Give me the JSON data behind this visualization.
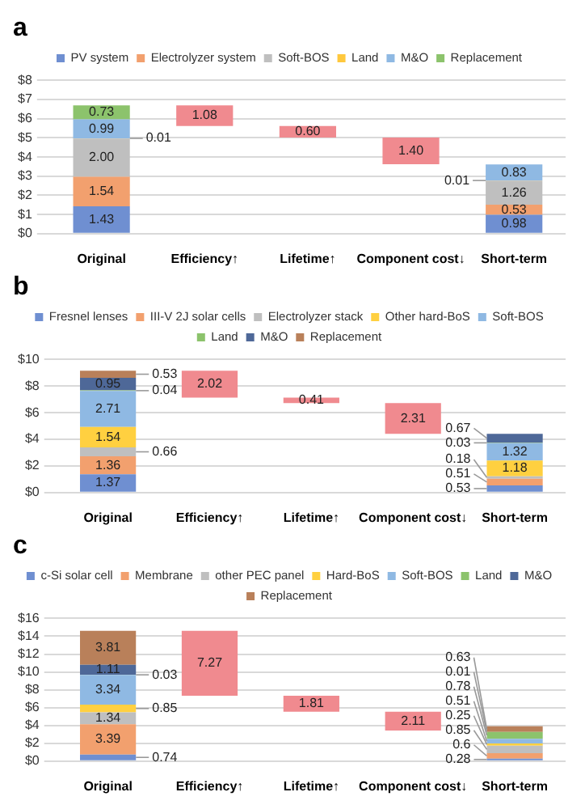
{
  "chart_data": [
    {
      "type": "bar",
      "title": "a",
      "categories": [
        "Original",
        "Efficiency↑",
        "Lifetime↑",
        "Component cost↓",
        "Short-term"
      ],
      "stacked": true,
      "ylim": [
        0,
        8
      ],
      "yticks": [
        {
          "value": 0,
          "label": "$0"
        },
        {
          "value": 1,
          "label": "$1"
        },
        {
          "value": 2,
          "label": "$2"
        },
        {
          "value": 3,
          "label": "$3"
        },
        {
          "value": 4,
          "label": "$4"
        },
        {
          "value": 5,
          "label": "$5"
        },
        {
          "value": 6,
          "label": "$6"
        },
        {
          "value": 7,
          "label": "$7"
        },
        {
          "value": 8,
          "label": "$8"
        }
      ],
      "grid": "y",
      "legend": "top",
      "series": [
        {
          "name": "PV system",
          "color": "#6f8fd1",
          "values": [
            1.43,
            null,
            null,
            null,
            0.98
          ],
          "value_labels": [
            "1.43",
            null,
            null,
            null,
            "0.98"
          ]
        },
        {
          "name": "Electrolyzer system",
          "color": "#f2a06e",
          "values": [
            1.54,
            null,
            null,
            null,
            0.53
          ],
          "value_labels": [
            "1.54",
            null,
            null,
            null,
            "0.53"
          ]
        },
        {
          "name": "Soft-BOS",
          "color": "#bfbfbf",
          "values": [
            2.0,
            null,
            null,
            null,
            1.26
          ],
          "value_labels": [
            "2.00",
            null,
            null,
            null,
            "1.26"
          ]
        },
        {
          "name": "Land",
          "color": "#ffc83d",
          "values": [
            0.01,
            null,
            null,
            null,
            0.01
          ],
          "value_labels": [
            "0.01",
            null,
            null,
            null,
            "0.01"
          ]
        },
        {
          "name": "M&O",
          "color": "#8fb9e3",
          "values": [
            0.99,
            null,
            null,
            null,
            0.83
          ],
          "value_labels": [
            "0.99",
            null,
            null,
            null,
            "0.83"
          ]
        },
        {
          "name": "Replacement",
          "color": "#8cc36c",
          "values": [
            0.73,
            null,
            null,
            null,
            null
          ],
          "value_labels": [
            "0.73",
            null,
            null,
            null,
            null
          ]
        },
        {
          "color": "#f08a8f",
          "values": [
            null,
            1.08,
            0.6,
            1.4,
            null
          ],
          "base": [
            null,
            5.62,
            5.02,
            3.62,
            null
          ],
          "value_labels": [
            null,
            "1.08",
            "0.60",
            "1.40",
            null
          ]
        }
      ]
    },
    {
      "type": "bar",
      "title": "b",
      "categories": [
        "Original",
        "Efficiency↑",
        "Lifetime↑",
        "Component cost↓",
        "Short-term"
      ],
      "stacked": true,
      "ylim": [
        0,
        10
      ],
      "yticks": [
        {
          "value": 0,
          "label": "$0"
        },
        {
          "value": 2,
          "label": "$2"
        },
        {
          "value": 4,
          "label": "$4"
        },
        {
          "value": 6,
          "label": "$6"
        },
        {
          "value": 8,
          "label": "$8"
        },
        {
          "value": 10,
          "label": "$10"
        }
      ],
      "grid": "y",
      "legend": "top",
      "series": [
        {
          "name": "Fresnel lenses",
          "color": "#6f8fd1",
          "values": [
            1.37,
            null,
            null,
            null,
            0.53
          ],
          "value_labels": [
            "1.37",
            null,
            null,
            null,
            "0.53"
          ]
        },
        {
          "name": "III-V 2J solar cells",
          "color": "#f2a06e",
          "values": [
            1.36,
            null,
            null,
            null,
            0.51
          ],
          "value_labels": [
            "1.36",
            null,
            null,
            null,
            "0.51"
          ]
        },
        {
          "name": "Electrolyzer stack",
          "color": "#bfbfbf",
          "values": [
            0.66,
            null,
            null,
            null,
            0.18
          ],
          "value_labels": [
            "0.66",
            null,
            null,
            null,
            "0.18"
          ]
        },
        {
          "name": "Other hard-BoS",
          "color": "#ffd040",
          "values": [
            1.54,
            null,
            null,
            null,
            1.18
          ],
          "value_labels": [
            "1.54",
            null,
            null,
            null,
            "1.18"
          ]
        },
        {
          "name": "Soft-BOS",
          "color": "#8fb9e3",
          "values": [
            2.71,
            null,
            null,
            null,
            1.32
          ],
          "value_labels": [
            "2.71",
            null,
            null,
            null,
            "1.32"
          ]
        },
        {
          "name": "Land",
          "color": "#8cc36c",
          "values": [
            0.04,
            null,
            null,
            null,
            0.03
          ],
          "value_labels": [
            "0.04",
            null,
            null,
            null,
            "0.03"
          ]
        },
        {
          "name": "M&O",
          "color": "#4e6898",
          "values": [
            0.95,
            null,
            null,
            null,
            0.67
          ],
          "value_labels": [
            "0.95",
            null,
            null,
            null,
            "0.67"
          ]
        },
        {
          "name": "Replacement",
          "color": "#b9805a",
          "values": [
            0.53,
            null,
            null,
            null,
            null
          ],
          "value_labels": [
            "0.53",
            null,
            null,
            null,
            null
          ]
        },
        {
          "color": "#f08a8f",
          "values": [
            null,
            2.02,
            0.41,
            2.31,
            null
          ],
          "base": [
            null,
            7.14,
            6.73,
            4.42,
            null
          ],
          "value_labels": [
            null,
            "2.02",
            "0.41",
            "2.31",
            null
          ]
        }
      ]
    },
    {
      "type": "bar",
      "title": "c",
      "categories": [
        "Original",
        "Efficiency↑",
        "Lifetime↑",
        "Component cost↓",
        "Short-term"
      ],
      "stacked": true,
      "ylim": [
        0,
        16
      ],
      "yticks": [
        {
          "value": 0,
          "label": "$0"
        },
        {
          "value": 2,
          "label": "$2"
        },
        {
          "value": 4,
          "label": "$4"
        },
        {
          "value": 6,
          "label": "$6"
        },
        {
          "value": 8,
          "label": "$8"
        },
        {
          "value": 10,
          "label": "$10"
        },
        {
          "value": 12,
          "label": "$12"
        },
        {
          "value": 14,
          "label": "$14"
        },
        {
          "value": 16,
          "label": "$16"
        }
      ],
      "grid": "y",
      "legend": "top",
      "series": [
        {
          "name": "c-Si solar cell",
          "color": "#6f8fd1",
          "values": [
            0.74,
            null,
            null,
            null,
            0.28
          ],
          "value_labels": [
            "0.74",
            null,
            null,
            null,
            "0.28"
          ]
        },
        {
          "name": "Membrane",
          "color": "#f2a06e",
          "values": [
            3.39,
            null,
            null,
            null,
            0.6
          ],
          "value_labels": [
            "3.39",
            null,
            null,
            null,
            "0.6"
          ]
        },
        {
          "name": "other PEC panel",
          "color": "#bfbfbf",
          "values": [
            1.34,
            null,
            null,
            null,
            0.85
          ],
          "value_labels": [
            "1.34",
            null,
            null,
            null,
            "0.85"
          ]
        },
        {
          "name": "Hard-BoS",
          "color": "#ffd040",
          "values": [
            0.85,
            null,
            null,
            null,
            0.25
          ],
          "value_labels": [
            "0.85",
            null,
            null,
            null,
            "0.25"
          ]
        },
        {
          "name": "Soft-BOS",
          "color": "#8fb9e3",
          "values": [
            3.34,
            null,
            null,
            null,
            0.51
          ],
          "value_labels": [
            "3.34",
            null,
            null,
            null,
            "0.51"
          ]
        },
        {
          "name": "Land",
          "color": "#8cc36c",
          "values": [
            0.03,
            null,
            null,
            null,
            0.78
          ],
          "value_labels": [
            "0.03",
            null,
            null,
            null,
            "0.78"
          ]
        },
        {
          "name": "M&O",
          "color": "#4e6898",
          "values": [
            1.11,
            null,
            null,
            null,
            0.01
          ],
          "value_labels": [
            "1.11",
            null,
            null,
            null,
            "0.01"
          ]
        },
        {
          "name": "Replacement",
          "color": "#b9805a",
          "values": [
            3.81,
            null,
            null,
            null,
            0.63
          ],
          "value_labels": [
            "3.81",
            null,
            null,
            null,
            "0.63"
          ]
        },
        {
          "color": "#f08a8f",
          "values": [
            null,
            7.27,
            1.81,
            2.11,
            null
          ],
          "base": [
            null,
            7.34,
            5.53,
            3.42,
            null
          ],
          "value_labels": [
            null,
            "7.27",
            "1.81",
            "2.11",
            null
          ]
        }
      ]
    }
  ]
}
